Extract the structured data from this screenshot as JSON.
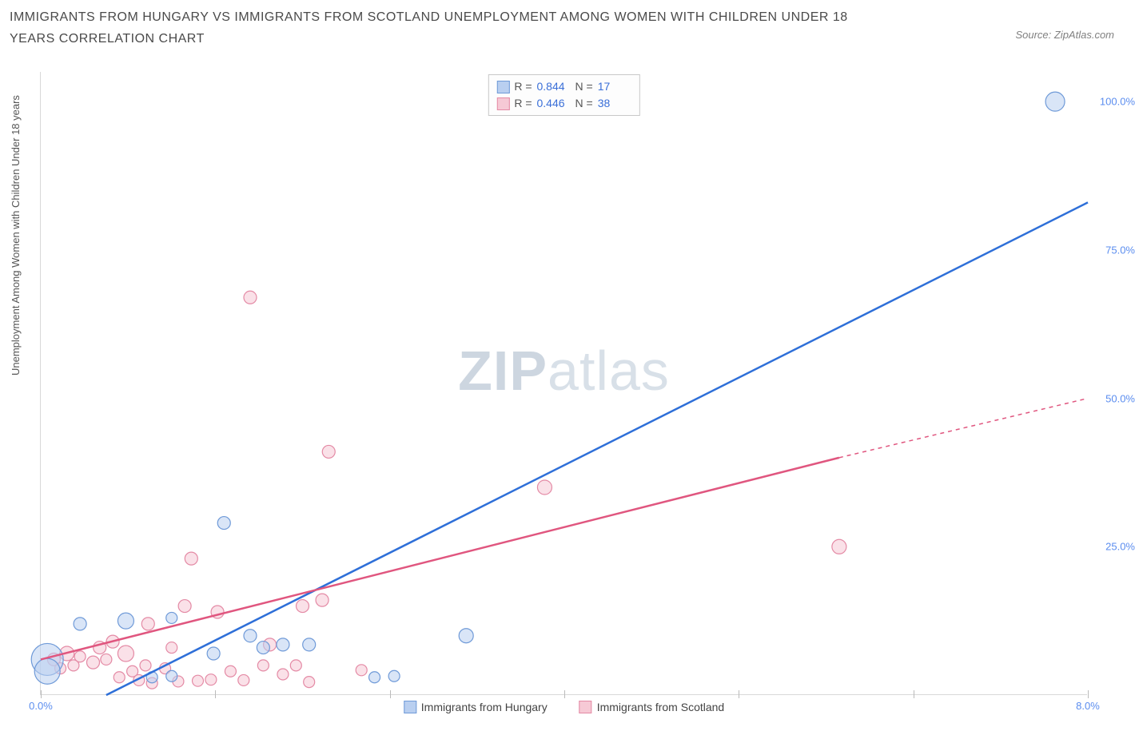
{
  "title": "IMMIGRANTS FROM HUNGARY VS IMMIGRANTS FROM SCOTLAND UNEMPLOYMENT AMONG WOMEN WITH CHILDREN UNDER 18 YEARS CORRELATION CHART",
  "source": "Source: ZipAtlas.com",
  "y_axis_label": "Unemployment Among Women with Children Under 18 years",
  "watermark_a": "ZIP",
  "watermark_b": "atlas",
  "chart": {
    "type": "scatter",
    "xlim": [
      0,
      8
    ],
    "ylim": [
      0,
      105
    ],
    "x_ticks": [
      {
        "pos": 0.0,
        "label": "0.0%"
      },
      {
        "pos": 1.333,
        "label": ""
      },
      {
        "pos": 2.667,
        "label": ""
      },
      {
        "pos": 4.0,
        "label": ""
      },
      {
        "pos": 5.333,
        "label": ""
      },
      {
        "pos": 6.667,
        "label": ""
      },
      {
        "pos": 8.0,
        "label": "8.0%"
      }
    ],
    "y_ticks": [
      {
        "pos": 25,
        "label": "25.0%"
      },
      {
        "pos": 50,
        "label": "50.0%"
      },
      {
        "pos": 75,
        "label": "75.0%"
      },
      {
        "pos": 100,
        "label": "100.0%"
      }
    ],
    "series": [
      {
        "name": "Immigrants from Hungary",
        "key": "hungary",
        "color_fill": "#b9cff0",
        "color_stroke": "#6f9ad8",
        "line_color": "#2e6fd8",
        "R": "0.844",
        "N": "17",
        "trend": {
          "x1": 0.5,
          "y1": 0,
          "x2": 8.0,
          "y2": 83
        },
        "points": [
          {
            "x": 0.05,
            "y": 6,
            "r": 20
          },
          {
            "x": 0.05,
            "y": 4,
            "r": 16
          },
          {
            "x": 0.3,
            "y": 12,
            "r": 8
          },
          {
            "x": 0.65,
            "y": 12.5,
            "r": 10
          },
          {
            "x": 0.85,
            "y": 3,
            "r": 7
          },
          {
            "x": 1.0,
            "y": 3.2,
            "r": 7
          },
          {
            "x": 1.0,
            "y": 13,
            "r": 7
          },
          {
            "x": 1.32,
            "y": 7,
            "r": 8
          },
          {
            "x": 1.4,
            "y": 29,
            "r": 8
          },
          {
            "x": 1.6,
            "y": 10,
            "r": 8
          },
          {
            "x": 1.7,
            "y": 8,
            "r": 8
          },
          {
            "x": 1.85,
            "y": 8.5,
            "r": 8
          },
          {
            "x": 2.05,
            "y": 8.5,
            "r": 8
          },
          {
            "x": 2.55,
            "y": 3,
            "r": 7
          },
          {
            "x": 2.7,
            "y": 3.2,
            "r": 7
          },
          {
            "x": 3.25,
            "y": 10,
            "r": 9
          },
          {
            "x": 7.75,
            "y": 100,
            "r": 12
          }
        ]
      },
      {
        "name": "Immigrants from Scotland",
        "key": "scotland",
        "color_fill": "#f6c9d5",
        "color_stroke": "#e48aa5",
        "line_color": "#e0567f",
        "R": "0.446",
        "N": "38",
        "trend": {
          "x1": 0.0,
          "y1": 6,
          "x2": 6.1,
          "y2": 40
        },
        "trend_dash": {
          "x1": 6.1,
          "y1": 40,
          "x2": 8.0,
          "y2": 50
        },
        "points": [
          {
            "x": 0.1,
            "y": 6,
            "r": 8
          },
          {
            "x": 0.15,
            "y": 4.5,
            "r": 7
          },
          {
            "x": 0.2,
            "y": 7,
            "r": 9
          },
          {
            "x": 0.25,
            "y": 5,
            "r": 7
          },
          {
            "x": 0.3,
            "y": 6.5,
            "r": 7
          },
          {
            "x": 0.4,
            "y": 5.5,
            "r": 8
          },
          {
            "x": 0.45,
            "y": 8,
            "r": 8
          },
          {
            "x": 0.5,
            "y": 6,
            "r": 7
          },
          {
            "x": 0.55,
            "y": 9,
            "r": 8
          },
          {
            "x": 0.6,
            "y": 3,
            "r": 7
          },
          {
            "x": 0.65,
            "y": 7,
            "r": 10
          },
          {
            "x": 0.7,
            "y": 4,
            "r": 7
          },
          {
            "x": 0.75,
            "y": 2.5,
            "r": 7
          },
          {
            "x": 0.8,
            "y": 5,
            "r": 7
          },
          {
            "x": 0.82,
            "y": 12,
            "r": 8
          },
          {
            "x": 0.85,
            "y": 2,
            "r": 7
          },
          {
            "x": 0.95,
            "y": 4.5,
            "r": 7
          },
          {
            "x": 1.0,
            "y": 8,
            "r": 7
          },
          {
            "x": 1.05,
            "y": 2.3,
            "r": 7
          },
          {
            "x": 1.1,
            "y": 15,
            "r": 8
          },
          {
            "x": 1.15,
            "y": 23,
            "r": 8
          },
          {
            "x": 1.2,
            "y": 2.4,
            "r": 7
          },
          {
            "x": 1.3,
            "y": 2.6,
            "r": 7
          },
          {
            "x": 1.35,
            "y": 14,
            "r": 8
          },
          {
            "x": 1.45,
            "y": 4,
            "r": 7
          },
          {
            "x": 1.55,
            "y": 2.5,
            "r": 7
          },
          {
            "x": 1.6,
            "y": 67,
            "r": 8
          },
          {
            "x": 1.7,
            "y": 5,
            "r": 7
          },
          {
            "x": 1.75,
            "y": 8.5,
            "r": 8
          },
          {
            "x": 1.85,
            "y": 3.5,
            "r": 7
          },
          {
            "x": 1.95,
            "y": 5,
            "r": 7
          },
          {
            "x": 2.0,
            "y": 15,
            "r": 8
          },
          {
            "x": 2.05,
            "y": 2.2,
            "r": 7
          },
          {
            "x": 2.15,
            "y": 16,
            "r": 8
          },
          {
            "x": 2.2,
            "y": 41,
            "r": 8
          },
          {
            "x": 2.45,
            "y": 4.2,
            "r": 7
          },
          {
            "x": 3.85,
            "y": 35,
            "r": 9
          },
          {
            "x": 6.1,
            "y": 25,
            "r": 9
          }
        ]
      }
    ],
    "stats_labels": {
      "R": "R =",
      "N": "N ="
    }
  },
  "legend": {
    "items": [
      {
        "label": "Immigrants from Hungary",
        "fill": "#b9cff0",
        "stroke": "#6f9ad8"
      },
      {
        "label": "Immigrants from Scotland",
        "fill": "#f6c9d5",
        "stroke": "#e48aa5"
      }
    ]
  }
}
